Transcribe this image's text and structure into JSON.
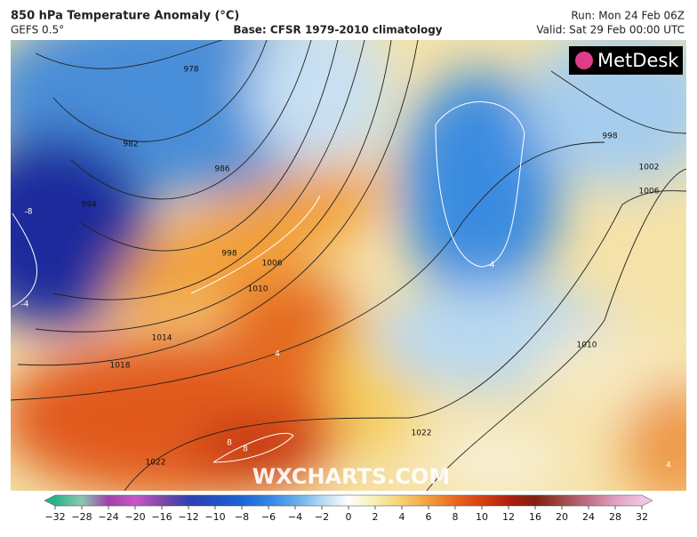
{
  "header": {
    "title": "850 hPa Temperature Anomaly (°C)",
    "model": "GEFS 0.5°",
    "base": "Base: CFSR 1979-2010 climatology",
    "run": "Run: Mon 24 Feb 06Z",
    "valid": "Valid: Sat 29 Feb 00:00 UTC"
  },
  "logo": "MetDesk",
  "watermark": "WXCHARTS.COM",
  "isobar_labels": [
    "978",
    "982",
    "986",
    "994",
    "998",
    "1006",
    "1010",
    "1014",
    "1018",
    "1022",
    "1022",
    "998",
    "1002",
    "1006",
    "1010"
  ],
  "anomaly_labels": [
    "-8",
    "-4",
    "-4",
    "4",
    "8",
    "8",
    "4"
  ],
  "colorbar": {
    "ticks": [
      "−32",
      "−28",
      "−24",
      "−20",
      "−16",
      "−12",
      "−10",
      "−8",
      "−6",
      "−4",
      "−2",
      "0",
      "2",
      "4",
      "6",
      "8",
      "10",
      "12",
      "16",
      "20",
      "24",
      "28",
      "32"
    ]
  }
}
